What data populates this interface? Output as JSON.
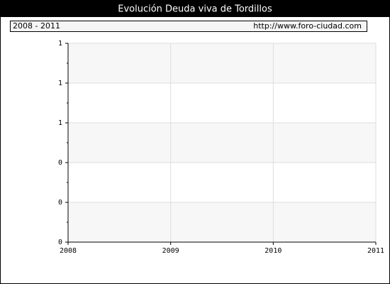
{
  "chart_data": {
    "type": "line",
    "title": "Evolución Deuda viva de Tordillos",
    "subtitle": "2008 - 2011",
    "source": "http://www.foro-ciudad.com",
    "xlim": [
      2008,
      2011
    ],
    "xticks": [
      2008,
      2009,
      2010,
      2011
    ],
    "ylim": [
      0,
      1
    ],
    "yticks": [
      {
        "value": 0,
        "label": "0"
      },
      {
        "value": 0.2,
        "label": "0"
      },
      {
        "value": 0.4,
        "label": "0"
      },
      {
        "value": 0.6,
        "label": "1"
      },
      {
        "value": 0.8,
        "label": "1"
      },
      {
        "value": 1,
        "label": "1"
      }
    ],
    "grid": true
  }
}
